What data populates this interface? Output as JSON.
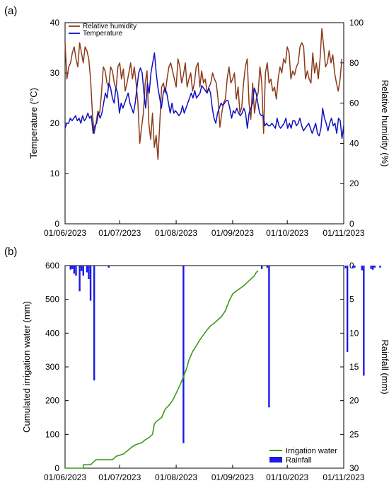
{
  "colors": {
    "humidity": "#8B3A1A",
    "temperature": "#1010C0",
    "irrigation": "#3C9A1A",
    "rainfall": "#1A1AE6"
  },
  "chart_data": [
    {
      "type": "line",
      "panel_label": "(a)",
      "x_ticks": [
        "01/06/2023",
        "01/07/2023",
        "01/08/2023",
        "01/09/2023",
        "01/10/2023",
        "01/11/2023"
      ],
      "ylabel": "Temperature (°C)",
      "ylim": [
        0,
        40
      ],
      "yticks": [
        "0",
        "10",
        "20",
        "30",
        "40"
      ],
      "y2label": "Relative humidity (%)",
      "y2lim": [
        0,
        100
      ],
      "y2ticks": [
        "0",
        "20",
        "40",
        "60",
        "80",
        "100"
      ],
      "legend_position": "top-left",
      "series": [
        {
          "name": "Relative humidity",
          "axis": "right",
          "values": [
            90,
            72,
            78,
            80,
            85,
            88,
            82,
            78,
            90,
            85,
            80,
            88,
            86,
            82,
            72,
            55,
            45,
            50,
            56,
            55,
            65,
            78,
            76,
            70,
            68,
            78,
            76,
            70,
            67,
            78,
            80,
            72,
            77,
            66,
            70,
            75,
            80,
            72,
            78,
            70,
            60,
            40,
            48,
            55,
            70,
            76,
            50,
            42,
            55,
            38,
            44,
            32,
            50,
            68,
            70,
            65,
            72,
            78,
            80,
            76,
            72,
            68,
            82,
            78,
            70,
            74,
            80,
            68,
            72,
            75,
            66,
            70,
            78,
            80,
            68,
            76,
            70,
            72,
            65,
            68,
            70,
            75,
            72,
            70,
            62,
            48,
            55,
            60,
            62,
            72,
            78,
            70,
            72,
            75,
            62,
            68,
            55,
            58,
            70,
            78,
            82,
            60,
            52,
            70,
            55,
            62,
            65,
            78,
            70,
            45,
            75,
            80,
            70,
            72,
            66,
            68,
            62,
            72,
            78,
            75,
            82,
            80,
            88,
            85,
            72,
            76,
            74,
            78,
            80,
            88,
            90,
            88,
            72,
            76,
            72,
            70,
            85,
            75,
            80,
            72,
            82,
            97,
            88,
            78,
            80,
            86,
            80,
            84,
            75,
            70,
            66,
            72,
            82
          ]
        },
        {
          "name": "Temperature",
          "axis": "left",
          "values": [
            19,
            20,
            20,
            21,
            20.5,
            21,
            21.5,
            20.5,
            21,
            20,
            21.5,
            20.5,
            21,
            22,
            21,
            21.5,
            18,
            19.5,
            20,
            22,
            21,
            22,
            24,
            26,
            25,
            28,
            27,
            25,
            24,
            27,
            26,
            22,
            24,
            23,
            24,
            25,
            26,
            24,
            23,
            22,
            24,
            27,
            30,
            31,
            30,
            26,
            23,
            28,
            26,
            30,
            32,
            34,
            30,
            27,
            25,
            23,
            26,
            27,
            26,
            24,
            22,
            24,
            22,
            22.5,
            22,
            21.5,
            22,
            23.5,
            22,
            23,
            24,
            25,
            26,
            25,
            26.5,
            25,
            25.5,
            26,
            27.5,
            27,
            26.5,
            26,
            27,
            26,
            23,
            21,
            20,
            22,
            23,
            24,
            23.5,
            24,
            24.5,
            24.5,
            23,
            21,
            22.5,
            22,
            23,
            22,
            21.5,
            22,
            23,
            22,
            19,
            22,
            23,
            24,
            27,
            26,
            24,
            22,
            21.5,
            21.5,
            19.5,
            20,
            19.5,
            19.5,
            20,
            19.5,
            19,
            21,
            19.5,
            19,
            19.5,
            20,
            21,
            19,
            20,
            19,
            20.5,
            20.5,
            19.5,
            20,
            21,
            19.5,
            18.5,
            19,
            19.5,
            20,
            19,
            18,
            19,
            20,
            18,
            17.5,
            19,
            23,
            21,
            20,
            18.5,
            20,
            21,
            19.5,
            20,
            18,
            21,
            20.5,
            17,
            19.5
          ]
        }
      ]
    },
    {
      "type": "line",
      "panel_label": "(b)",
      "x_ticks": [
        "01/06/2023",
        "01/07/2023",
        "01/08/2023",
        "01/09/2023",
        "01/10/2023",
        "01/11/2023"
      ],
      "ylabel": "Cumulated irrigation water (mm)",
      "ylim": [
        0,
        600
      ],
      "yticks": [
        "0",
        "100",
        "200",
        "300",
        "400",
        "500",
        "600"
      ],
      "y2label": "Rainfall (mm)",
      "y2lim": [
        0,
        30
      ],
      "y2_inverted": true,
      "y2ticks": [
        "0",
        "5",
        "10",
        "15",
        "20",
        "25",
        "30"
      ],
      "legend_position": "bottom-right",
      "series": [
        {
          "name": "Irrigation water",
          "axis": "left",
          "points": [
            [
              0,
              0
            ],
            [
              10,
              0
            ],
            [
              10,
              10
            ],
            [
              14,
              10
            ],
            [
              15,
              15
            ],
            [
              17,
              25
            ],
            [
              26,
              25
            ],
            [
              28,
              35
            ],
            [
              32,
              42
            ],
            [
              35,
              55
            ],
            [
              37,
              64
            ],
            [
              39,
              70
            ],
            [
              42,
              75
            ],
            [
              44,
              84
            ],
            [
              46,
              90
            ],
            [
              48,
              100
            ],
            [
              49,
              130
            ],
            [
              50,
              138
            ],
            [
              53,
              150
            ],
            [
              55,
              175
            ],
            [
              57,
              186
            ],
            [
              59,
              200
            ],
            [
              61,
              222
            ],
            [
              63,
              245
            ],
            [
              65,
              270
            ],
            [
              67,
              300
            ],
            [
              68,
              320
            ],
            [
              70,
              345
            ],
            [
              72,
              362
            ],
            [
              74,
              380
            ],
            [
              76,
              395
            ],
            [
              78,
              410
            ],
            [
              80,
              422
            ],
            [
              82,
              430
            ],
            [
              84,
              440
            ],
            [
              86,
              450
            ],
            [
              88,
              466
            ],
            [
              90,
              494
            ],
            [
              92,
              516
            ],
            [
              94,
              525
            ],
            [
              96,
              532
            ],
            [
              98,
              540
            ],
            [
              100,
              550
            ],
            [
              102,
              560
            ],
            [
              104,
              570
            ],
            [
              105,
              580
            ],
            [
              106,
              585
            ]
          ]
        },
        {
          "name": "Rainfall",
          "axis": "right",
          "x": [
            3,
            4,
            5,
            6,
            8,
            9,
            10,
            12,
            13,
            14,
            16,
            24,
            65,
            108,
            111,
            112,
            154,
            155,
            158,
            159,
            163,
            164,
            168,
            169,
            170,
            173
          ],
          "values": [
            0.6,
            0.5,
            1.2,
            1.5,
            3.8,
            0.8,
            1.5,
            1.0,
            2.0,
            5.2,
            17.0,
            0.3,
            26.3,
            0.5,
            0.3,
            21.0,
            0.4,
            12.8,
            0.4,
            0.3,
            0.7,
            16.3,
            0.5,
            0.6,
            0.3,
            0.3
          ]
        }
      ]
    }
  ]
}
